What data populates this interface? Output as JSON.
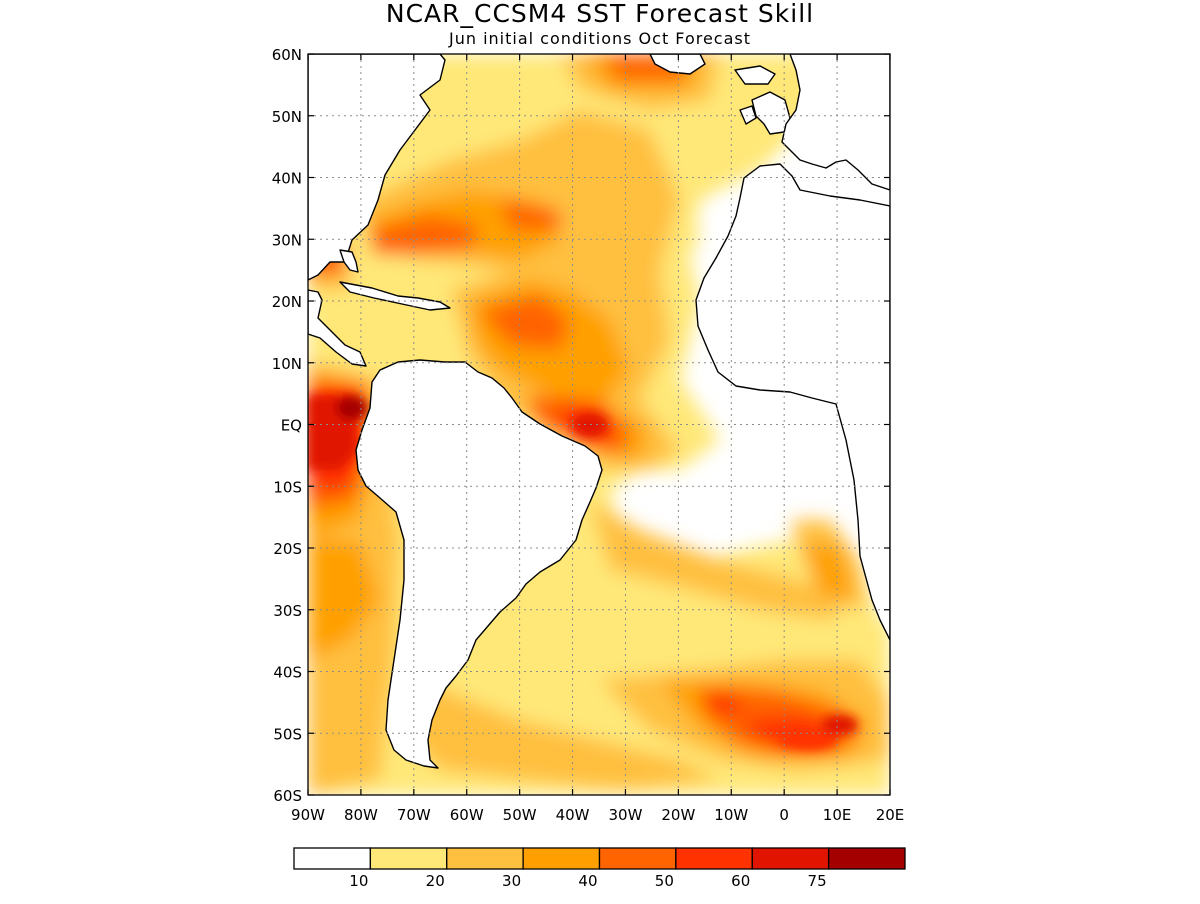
{
  "title": "NCAR_CCSM4  SST Forecast Skill",
  "subtitle": "Jun initial conditions  Oct Forecast",
  "map": {
    "lat_labels": [
      "60N",
      "50N",
      "40N",
      "30N",
      "20N",
      "10N",
      "EQ",
      "10S",
      "20S",
      "30S",
      "40S",
      "50S",
      "60S"
    ],
    "lon_labels": [
      "90W",
      "80W",
      "70W",
      "60W",
      "50W",
      "40W",
      "30W",
      "20W",
      "10W",
      "0",
      "10E",
      "20E"
    ],
    "lat_range": [
      -60,
      60
    ],
    "lon_range": [
      -90,
      20
    ],
    "gridlines": true
  },
  "colorbar": {
    "boundaries": [
      "10",
      "20",
      "30",
      "40",
      "50",
      "60",
      "75"
    ],
    "colors": [
      "#ffffff",
      "#ffe878",
      "#ffc040",
      "#ffa000",
      "#ff6400",
      "#ff3200",
      "#e11400",
      "#a50000"
    ]
  },
  "skill_regions": [
    {
      "name": "eastern-pacific-equatorial",
      "level": 75
    },
    {
      "name": "gulf-stream",
      "level": 50
    },
    {
      "name": "tropical-north-atlantic",
      "level": 50
    },
    {
      "name": "amazon-outflow",
      "level": 60
    },
    {
      "name": "south-atlantic-band",
      "level": 30
    },
    {
      "name": "southern-ocean-east",
      "level": 60
    }
  ]
}
